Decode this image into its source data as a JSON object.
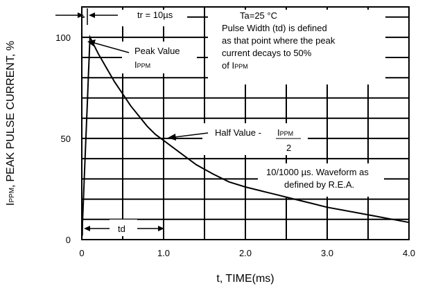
{
  "chart_data": {
    "type": "line",
    "title": "",
    "xlabel": "t, TIME(ms)",
    "ylabel": {
      "main": "PEAK PULSE CURRENT, %",
      "prefix": "I",
      "prefix_sub": "PPM",
      "suffix": ","
    },
    "xlim": [
      0,
      4.0
    ],
    "ylim": [
      0,
      115
    ],
    "grid": true,
    "x_ticks": [
      0,
      1.0,
      2.0,
      3.0,
      4.0
    ],
    "x_tick_labels": [
      "0",
      "1.0",
      "2.0",
      "3.0",
      "4.0"
    ],
    "y_ticks": [
      0,
      50,
      100
    ],
    "y_tick_labels": [
      "0",
      "50",
      "100"
    ],
    "series": [
      {
        "x": [
          0,
          0.01,
          0.02,
          0.03,
          0.04,
          0.05,
          0.06,
          0.07,
          0.08,
          0.09,
          0.1,
          0.2,
          0.3,
          0.4,
          0.5,
          0.6,
          0.7,
          0.8,
          0.9,
          1.0,
          1.2,
          1.4,
          1.6,
          1.8,
          2.0,
          2.2,
          2.4,
          2.6,
          2.8,
          3.0,
          3.2,
          3.4,
          3.6,
          3.8,
          4.0
        ],
        "values": [
          0,
          10,
          20,
          30,
          40,
          50,
          60,
          70,
          80,
          90,
          100,
          92,
          85,
          78,
          72,
          66,
          61,
          56,
          52,
          49,
          43,
          37,
          32.5,
          28.5,
          26,
          24,
          22,
          20,
          18,
          16,
          14.5,
          13,
          11.5,
          10,
          8.5
        ]
      }
    ],
    "annotations": {
      "tr": "tr = 10µs",
      "conditions": [
        "Ta=25 °C",
        "Pulse Width (td) is defined",
        "as that point where the peak",
        "current decays to 50%",
        "of I"
      ],
      "conditions_sub": "PPM",
      "peak_value": "Peak Value",
      "peak_sym": "I",
      "peak_sym_sub": "PPM",
      "half_value": "Half Value -",
      "half_sym": "I",
      "half_sym_sub": "PPM",
      "half_den": "2",
      "waveform": [
        "10/1000 µs. Waveform as",
        "defined by R.E.A."
      ],
      "td": "td"
    }
  }
}
